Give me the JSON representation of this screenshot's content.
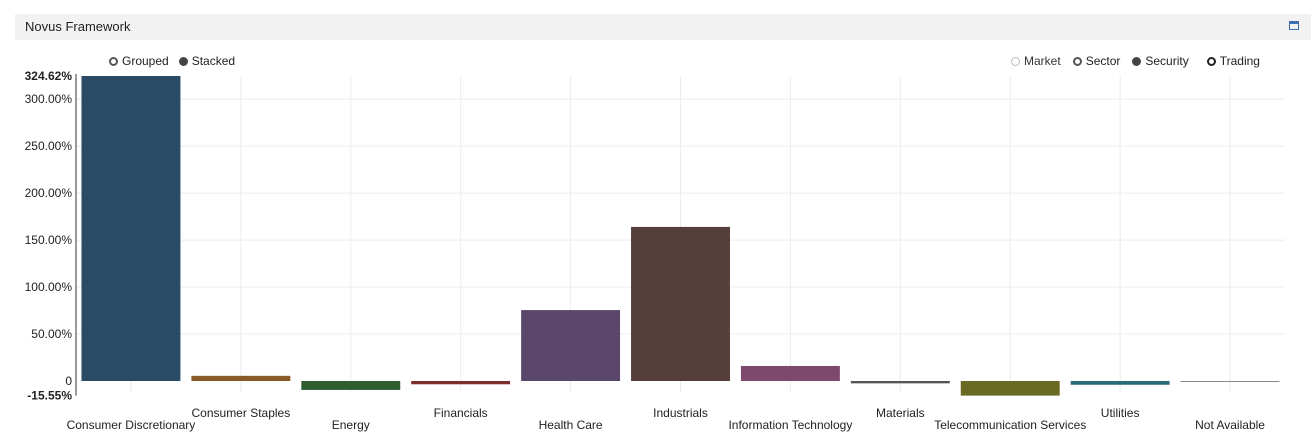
{
  "window": {
    "title": "Novus Framework"
  },
  "layout_options": [
    {
      "label": "Grouped",
      "selected": false
    },
    {
      "label": "Stacked",
      "selected": true
    }
  ],
  "level_options": [
    {
      "label": "Market",
      "state": "disabled"
    },
    {
      "label": "Sector",
      "state": "normal"
    },
    {
      "label": "Security",
      "state": "selected"
    },
    {
      "label": "Trading",
      "state": "bold"
    }
  ],
  "chart_data": {
    "type": "bar",
    "categories": [
      "Consumer Discretionary",
      "Consumer Staples",
      "Energy",
      "Financials",
      "Health Care",
      "Industrials",
      "Information Technology",
      "Materials",
      "Telecommunication Services",
      "Utilities",
      "Not Available"
    ],
    "values": [
      324.62,
      5.5,
      -9.5,
      -3.5,
      75.5,
      164.0,
      16.0,
      -2.5,
      -15.55,
      -4.0,
      -1.0
    ],
    "colors": [
      "#2a4b66",
      "#8b5a2b",
      "#2e5e2e",
      "#7b2f2f",
      "#5c476c",
      "#553e3a",
      "#7d4a6e",
      "#555555",
      "#6b6a24",
      "#2a6a77",
      "#888888"
    ],
    "ylim": [
      -15.55,
      324.62
    ],
    "y_tick_values": [
      300,
      250,
      200,
      150,
      100,
      50,
      0
    ],
    "y_tick_labels": [
      "300.00%",
      "250.00%",
      "200.00%",
      "150.00%",
      "100.00%",
      "50.00%",
      "0"
    ],
    "y_max_label": "324.62%",
    "y_min_label": "-15.55%",
    "grid": true,
    "legend": "none"
  }
}
